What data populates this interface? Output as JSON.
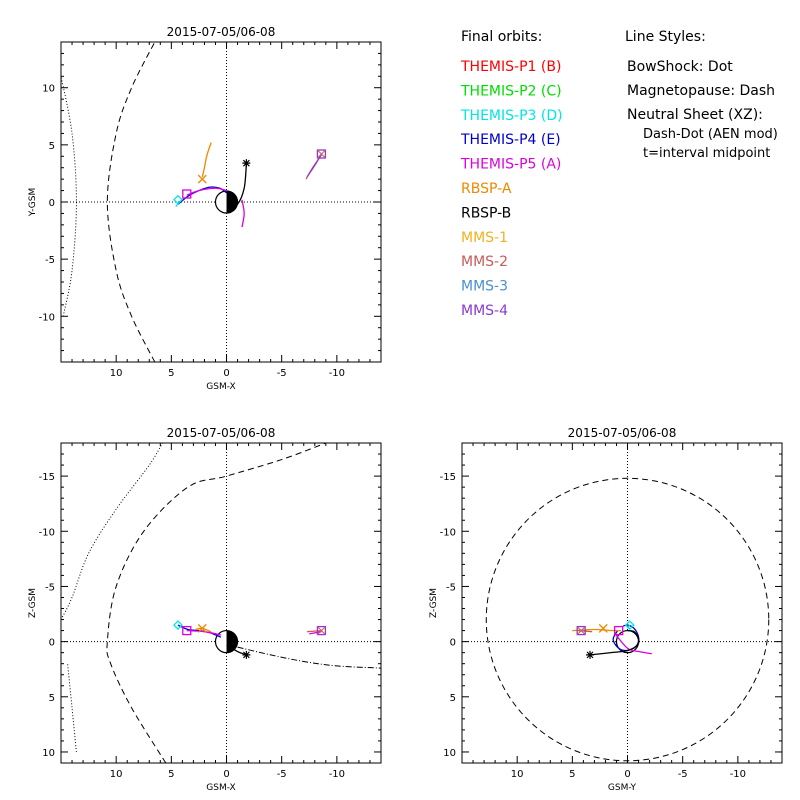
{
  "legend": {
    "orbits_title": "Final orbits:",
    "styles_title": "Line Styles:",
    "spacecraft": [
      {
        "label": "THEMIS-P1 (B)",
        "color": "#ff0000"
      },
      {
        "label": "THEMIS-P2 (C)",
        "color": "#00dd00"
      },
      {
        "label": "THEMIS-P3 (D)",
        "color": "#00e5e5"
      },
      {
        "label": "THEMIS-P4 (E)",
        "color": "#0000cc"
      },
      {
        "label": "THEMIS-P5 (A)",
        "color": "#dd00dd"
      },
      {
        "label": "RBSP-A",
        "color": "#ee8800"
      },
      {
        "label": "RBSP-B",
        "color": "#000000"
      },
      {
        "label": "MMS-1",
        "color": "#f0b020"
      },
      {
        "label": "MMS-2",
        "color": "#c85a5a"
      },
      {
        "label": "MMS-3",
        "color": "#4a8fd0"
      },
      {
        "label": "MMS-4",
        "color": "#8a3ad0"
      }
    ],
    "styles": [
      "BowShock: Dot",
      "Magnetopause: Dash",
      "Neutral Sheet (XZ):",
      "Dash-Dot (AEN mod)",
      "t=interval midpoint"
    ]
  },
  "chart_data": [
    {
      "type": "line",
      "name": "xy",
      "title": "2015-07-05/06-08",
      "xlabel": "GSM-X",
      "ylabel": "Y-GSM",
      "xlim": [
        15,
        -14
      ],
      "ylim": [
        14,
        -14
      ],
      "xticks": [
        10,
        5,
        0,
        -5,
        -10
      ],
      "yticks": [
        -10,
        -5,
        0,
        5,
        10
      ],
      "bowshock": [
        [
          14.8,
          -10.0
        ],
        [
          14.0,
          -6.0
        ],
        [
          13.6,
          0.0
        ],
        [
          14.0,
          6.0
        ],
        [
          15.0,
          11.0
        ]
      ],
      "magnetopause": [
        [
          6.5,
          -14.0
        ],
        [
          8.6,
          -10.0
        ],
        [
          10.0,
          -6.0
        ],
        [
          10.8,
          0.0
        ],
        [
          10.0,
          6.0
        ],
        [
          8.6,
          10.0
        ],
        [
          6.5,
          14.0
        ]
      ],
      "orbits": [
        {
          "color": "#0000cc",
          "points": [
            [
              4.4,
              -0.2
            ],
            [
              3.5,
              0.5
            ],
            [
              2.5,
              1.0
            ],
            [
              1.5,
              1.3
            ],
            [
              0.6,
              1.2
            ],
            [
              0.0,
              0.8
            ]
          ]
        },
        {
          "color": "#dd00dd",
          "points": [
            [
              3.6,
              0.6
            ],
            [
              2.5,
              1.0
            ],
            [
              1.0,
              1.2
            ],
            [
              0.0,
              1.0
            ]
          ]
        },
        {
          "color": "#dd00dd",
          "points": [
            [
              -1.4,
              -2.2
            ],
            [
              -1.6,
              -1.0
            ],
            [
              -1.4,
              0.2
            ]
          ]
        },
        {
          "color": "#00e5e5",
          "points": [
            [
              4.6,
              -0.4
            ],
            [
              4.2,
              0.1
            ]
          ]
        },
        {
          "color": "#ee8800",
          "points": [
            [
              1.4,
              5.2
            ],
            [
              1.8,
              4.0
            ],
            [
              2.0,
              3.0
            ],
            [
              2.2,
              2.2
            ]
          ]
        },
        {
          "color": "#000000",
          "points": [
            [
              0.0,
              -0.8
            ],
            [
              -1.0,
              -0.2
            ],
            [
              -1.6,
              1.2
            ],
            [
              -1.8,
              3.3
            ]
          ]
        },
        {
          "color": "#c85a5a",
          "points": [
            [
              -7.2,
              2.0
            ],
            [
              -7.8,
              3.0
            ],
            [
              -8.6,
              4.1
            ]
          ]
        },
        {
          "color": "#8a3ad0",
          "points": [
            [
              -7.3,
              2.2
            ],
            [
              -8.0,
              3.2
            ],
            [
              -8.6,
              4.2
            ]
          ]
        }
      ],
      "markers": [
        {
          "shape": "diamond",
          "color": "#00e5e5",
          "x": 4.4,
          "y": 0.2
        },
        {
          "shape": "square",
          "color": "#dd00dd",
          "x": 3.6,
          "y": 0.7
        },
        {
          "shape": "cross",
          "color": "#ee8800",
          "x": 2.2,
          "y": 2.0
        },
        {
          "shape": "star",
          "color": "#000000",
          "x": -1.8,
          "y": 3.4
        },
        {
          "shape": "squarex",
          "color": "#8a3ad0",
          "x": -8.6,
          "y": 4.2
        }
      ]
    },
    {
      "type": "line",
      "name": "xz",
      "title": "2015-07-05/06-08",
      "xlabel": "GSM-X",
      "ylabel": "Z-GSM",
      "xlim": [
        15,
        -14
      ],
      "ylim": [
        -18,
        11
      ],
      "xticks": [
        10,
        5,
        0,
        -5,
        -10
      ],
      "yticks": [
        10,
        5,
        0,
        -5,
        -10,
        -15
      ],
      "bowshock": [
        [
          15.0,
          -2.0
        ],
        [
          14.0,
          -4.0
        ],
        [
          12.5,
          -8.0
        ],
        [
          10.0,
          -12.0
        ],
        [
          7.0,
          -16.0
        ],
        [
          5.8,
          -18.0
        ]
      ],
      "bowshock_upper": [
        [
          13.6,
          10.0
        ],
        [
          14.0,
          6.0
        ],
        [
          14.4,
          2.0
        ]
      ],
      "magnetopause": [
        [
          5.5,
          11.0
        ],
        [
          8.6,
          6.0
        ],
        [
          10.5,
          2.0
        ],
        [
          10.8,
          0.0
        ],
        [
          10.0,
          -5.0
        ],
        [
          7.5,
          -10.0
        ],
        [
          3.5,
          -14.0
        ],
        [
          0.0,
          -15.0
        ],
        [
          -5.0,
          -16.5
        ],
        [
          -9.0,
          -18.0
        ]
      ],
      "neutral_sheet": [
        [
          -1.0,
          0.5
        ],
        [
          -4.0,
          1.2
        ],
        [
          -7.0,
          1.8
        ],
        [
          -10.0,
          2.2
        ],
        [
          -14.0,
          2.4
        ]
      ],
      "orbits": [
        {
          "color": "#0000cc",
          "points": [
            [
              4.4,
              -1.5
            ],
            [
              3.5,
              -1.1
            ],
            [
              2.5,
              -1.0
            ],
            [
              1.5,
              -0.8
            ],
            [
              0.5,
              -0.4
            ]
          ]
        },
        {
          "color": "#dd00dd",
          "points": [
            [
              3.6,
              -1.0
            ],
            [
              2.0,
              -0.9
            ],
            [
              0.5,
              -0.6
            ]
          ]
        },
        {
          "color": "#ee8800",
          "points": [
            [
              1.4,
              -0.9
            ],
            [
              2.2,
              -1.2
            ],
            [
              2.8,
              -1.1
            ]
          ]
        },
        {
          "color": "#000000",
          "points": [
            [
              0.0,
              0.3
            ],
            [
              -1.0,
              0.9
            ],
            [
              -1.8,
              1.2
            ]
          ]
        },
        {
          "color": "#c85a5a",
          "points": [
            [
              -7.3,
              -0.9
            ],
            [
              -8.6,
              -1.0
            ]
          ]
        },
        {
          "color": "#dd00dd",
          "points": [
            [
              -7.5,
              -0.7
            ],
            [
              -8.6,
              -0.9
            ]
          ]
        }
      ],
      "markers": [
        {
          "shape": "diamond",
          "color": "#00e5e5",
          "x": 4.4,
          "y": -1.5
        },
        {
          "shape": "square",
          "color": "#dd00dd",
          "x": 3.6,
          "y": -1.0
        },
        {
          "shape": "cross",
          "color": "#ee8800",
          "x": 2.2,
          "y": -1.2
        },
        {
          "shape": "star",
          "color": "#000000",
          "x": -1.8,
          "y": 1.2
        },
        {
          "shape": "squarex",
          "color": "#8a3ad0",
          "x": -8.6,
          "y": -1.0
        }
      ]
    },
    {
      "type": "line",
      "name": "yz",
      "title": "2015-07-05/06-08",
      "xlabel": "GSM-Y",
      "ylabel": "Z-GSM",
      "xlim": [
        15,
        -14
      ],
      "ylim": [
        -18,
        11
      ],
      "xticks": [
        10,
        5,
        0,
        -5,
        -10
      ],
      "yticks": [
        10,
        5,
        0,
        -5,
        -10,
        -15
      ],
      "magnetopause_circle": {
        "cx": 0.0,
        "cy": -2.0,
        "r": 12.8
      },
      "orbits": [
        {
          "color": "#0000cc",
          "points": [
            [
              0.9,
              -1.0
            ],
            [
              1.3,
              -0.2
            ],
            [
              0.8,
              0.6
            ],
            [
              0.0,
              0.8
            ],
            [
              -0.8,
              0.4
            ],
            [
              -1.0,
              -0.4
            ],
            [
              -0.6,
              -1.2
            ],
            [
              0.0,
              -1.5
            ],
            [
              0.4,
              -1.4
            ]
          ]
        },
        {
          "color": "#dd00dd",
          "points": [
            [
              1.2,
              -0.8
            ],
            [
              0.0,
              0.6
            ],
            [
              -1.0,
              0.9
            ],
            [
              -2.2,
              1.1
            ]
          ]
        },
        {
          "color": "#000000",
          "points": [
            [
              3.4,
              1.2
            ],
            [
              1.5,
              1.0
            ],
            [
              0.0,
              0.8
            ],
            [
              -0.9,
              0.3
            ],
            [
              -1.0,
              -0.3
            ],
            [
              -0.6,
              -0.9
            ],
            [
              0.0,
              -1.0
            ]
          ]
        },
        {
          "color": "#ee8800",
          "points": [
            [
              5.0,
              -1.0
            ],
            [
              3.0,
              -1.1
            ],
            [
              1.5,
              -1.0
            ],
            [
              0.6,
              -1.0
            ]
          ]
        },
        {
          "color": "#c85a5a",
          "points": [
            [
              4.5,
              -1.0
            ],
            [
              3.2,
              -0.9
            ]
          ]
        },
        {
          "color": "#00e5e5",
          "points": [
            [
              0.0,
              -1.2
            ],
            [
              -0.2,
              -1.5
            ]
          ]
        }
      ],
      "markers": [
        {
          "shape": "diamond",
          "color": "#00e5e5",
          "x": -0.2,
          "y": -1.5
        },
        {
          "shape": "square",
          "color": "#dd00dd",
          "x": 0.8,
          "y": -1.0
        },
        {
          "shape": "cross",
          "color": "#ee8800",
          "x": 2.2,
          "y": -1.2
        },
        {
          "shape": "star",
          "color": "#000000",
          "x": 3.4,
          "y": 1.2
        },
        {
          "shape": "squarex",
          "color": "#8a3ad0",
          "x": 4.2,
          "y": -1.0
        }
      ]
    }
  ]
}
